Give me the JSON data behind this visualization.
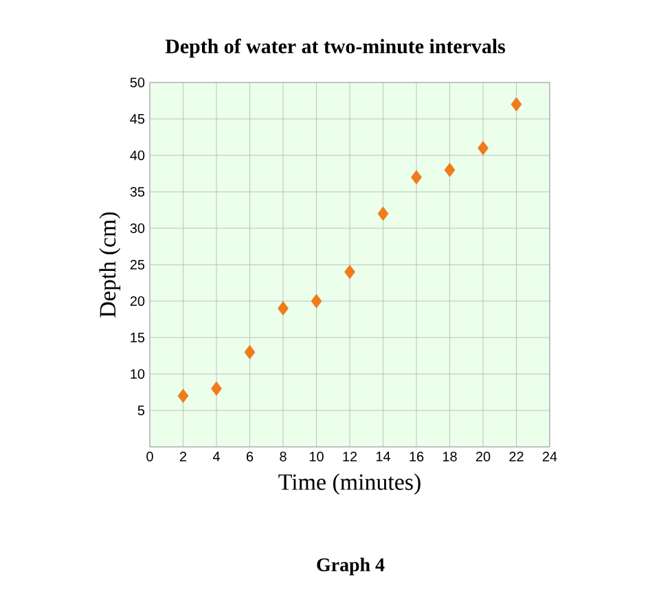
{
  "chart_data": {
    "type": "scatter",
    "title": "Depth of water at two-minute intervals",
    "xlabel": "Time (minutes)",
    "ylabel": "Depth (cm)",
    "annotations": [
      "Graph 4"
    ],
    "x": [
      2,
      4,
      6,
      8,
      10,
      12,
      14,
      16,
      18,
      20,
      22
    ],
    "values": [
      7,
      8,
      13,
      19,
      20,
      24,
      32,
      37,
      38,
      41,
      47
    ],
    "color": "#f07b1a",
    "marker": "diamond",
    "grid": true,
    "xlim": [
      0,
      24
    ],
    "xticks": [
      0,
      2,
      4,
      6,
      8,
      10,
      12,
      14,
      16,
      18,
      20,
      22,
      24
    ],
    "ylim": [
      0,
      50
    ],
    "yticks": [
      {
        "value": 0,
        "label": null
      },
      5,
      10,
      15,
      20,
      25,
      30,
      35,
      40,
      45,
      50
    ]
  }
}
